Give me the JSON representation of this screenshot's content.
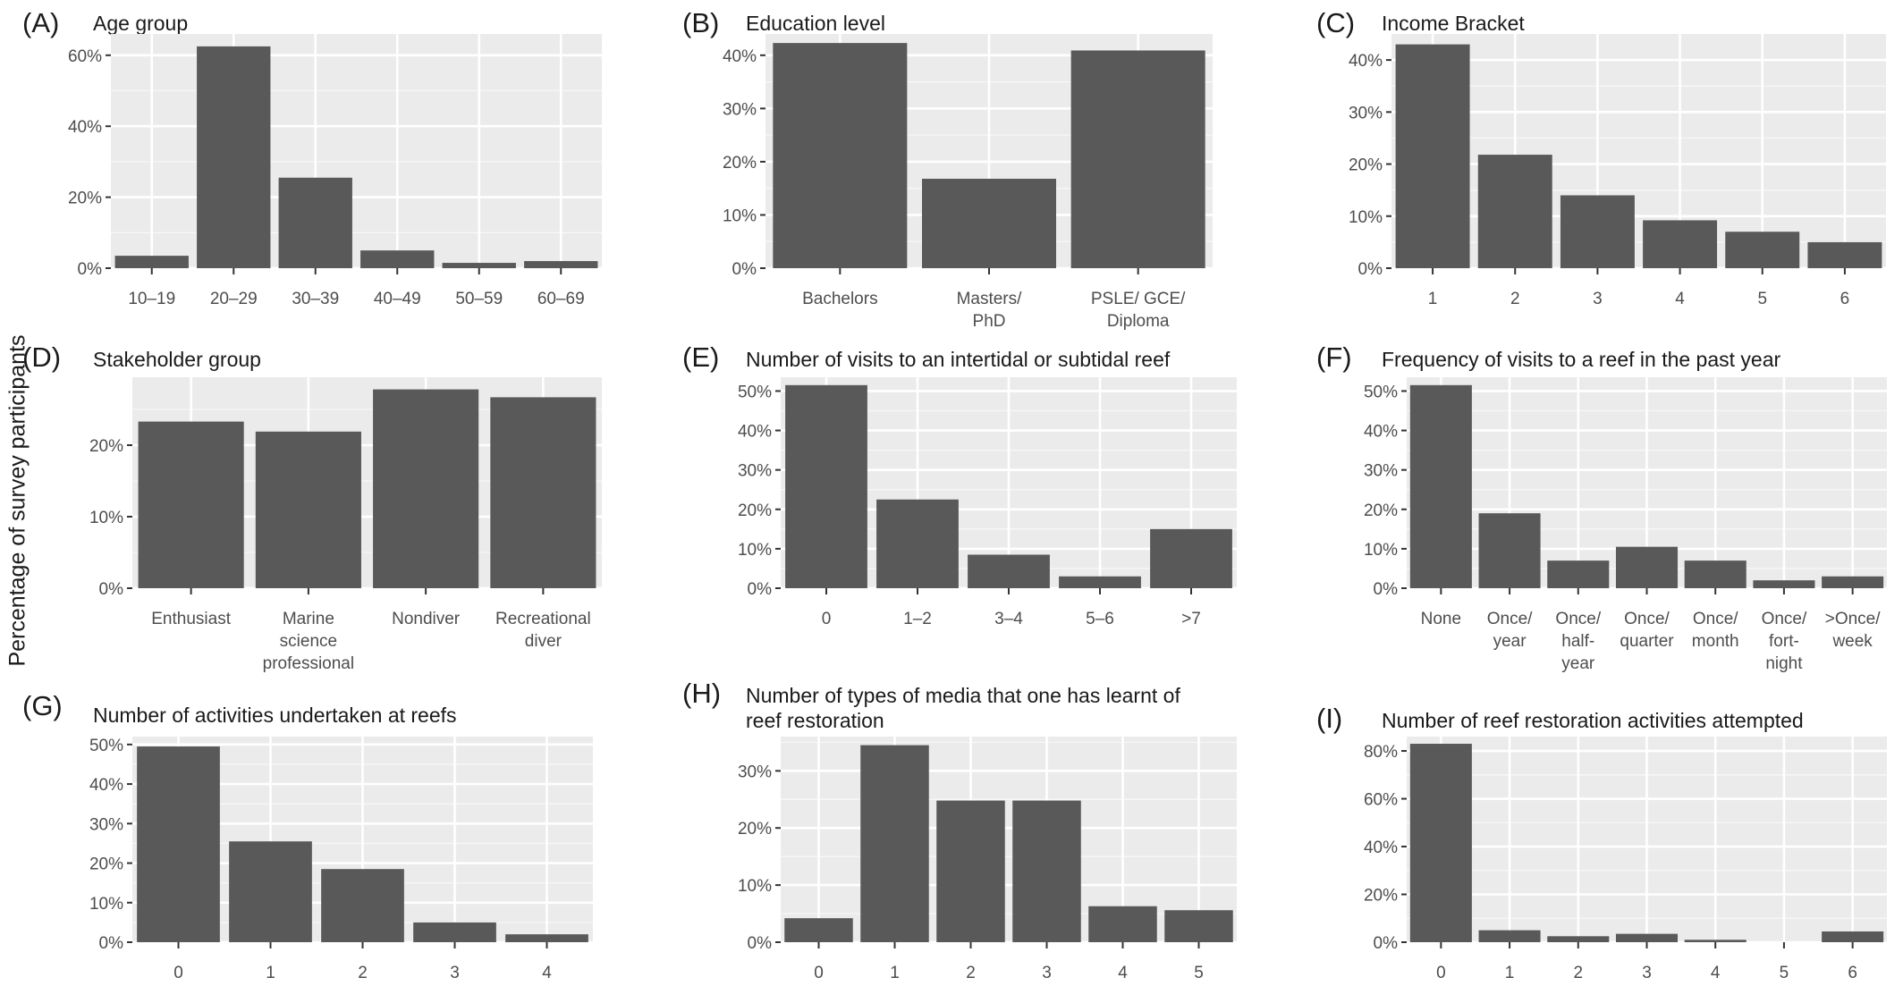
{
  "figure": {
    "y_axis_label": "Percentage of survey participants"
  },
  "chart_data": [
    {
      "id": "A",
      "panel_label": "(A)",
      "title": [
        "Age group"
      ],
      "type": "bar",
      "categories": [
        [
          "10–19"
        ],
        [
          "20–29"
        ],
        [
          "30–39"
        ],
        [
          "40–49"
        ],
        [
          "50–59"
        ],
        [
          "60–69"
        ]
      ],
      "values": [
        3.5,
        62.5,
        25.5,
        5,
        1.5,
        2
      ],
      "ylim": [
        0,
        66
      ],
      "yticks": [
        0,
        20,
        40,
        60
      ],
      "ytick_labels": [
        "0%",
        "20%",
        "40%",
        "60%"
      ],
      "grid": true,
      "bar_color": "#595959",
      "panel_bg": "#ebebeb"
    },
    {
      "id": "B",
      "panel_label": "(B)",
      "title": [
        "Education level"
      ],
      "type": "bar",
      "categories": [
        [
          "Bachelors"
        ],
        [
          "Masters/",
          "PhD"
        ],
        [
          "PSLE/ GCE/",
          "Diploma"
        ]
      ],
      "values": [
        42.3,
        16.8,
        40.9
      ],
      "ylim": [
        0,
        44
      ],
      "yticks": [
        0,
        10,
        20,
        30,
        40
      ],
      "ytick_labels": [
        "0%",
        "10%",
        "20%",
        "30%",
        "40%"
      ],
      "grid": true,
      "bar_color": "#595959",
      "panel_bg": "#ebebeb"
    },
    {
      "id": "C",
      "panel_label": "(C)",
      "title": [
        "Income Bracket"
      ],
      "type": "bar",
      "categories": [
        [
          "1"
        ],
        [
          "2"
        ],
        [
          "3"
        ],
        [
          "4"
        ],
        [
          "5"
        ],
        [
          "6"
        ]
      ],
      "values": [
        43,
        21.8,
        14,
        9.2,
        7,
        5
      ],
      "ylim": [
        0,
        45
      ],
      "yticks": [
        0,
        10,
        20,
        30,
        40
      ],
      "ytick_labels": [
        "0%",
        "10%",
        "20%",
        "30%",
        "40%"
      ],
      "grid": true,
      "bar_color": "#595959",
      "panel_bg": "#ebebeb"
    },
    {
      "id": "D",
      "panel_label": "(D)",
      "title": [
        "Stakeholder group"
      ],
      "type": "bar",
      "categories": [
        [
          "Enthusiast"
        ],
        [
          "Marine",
          "science",
          "professional"
        ],
        [
          "Nondiver"
        ],
        [
          "Recreational",
          "diver"
        ]
      ],
      "values": [
        23.3,
        21.9,
        27.8,
        26.7
      ],
      "ylim": [
        0,
        29.5
      ],
      "yticks": [
        0,
        10,
        20
      ],
      "ytick_labels": [
        "0%",
        "10%",
        "20%"
      ],
      "grid": true,
      "bar_color": "#595959",
      "panel_bg": "#ebebeb"
    },
    {
      "id": "E",
      "panel_label": "(E)",
      "title": [
        "Number of visits to an intertidal or subtidal reef"
      ],
      "type": "bar",
      "categories": [
        [
          "0"
        ],
        [
          "1–2"
        ],
        [
          "3–4"
        ],
        [
          "5–6"
        ],
        [
          ">7"
        ]
      ],
      "values": [
        51.5,
        22.5,
        8.5,
        3,
        15
      ],
      "ylim": [
        0,
        53.5
      ],
      "yticks": [
        0,
        10,
        20,
        30,
        40,
        50
      ],
      "ytick_labels": [
        "0%",
        "10%",
        "20%",
        "30%",
        "40%",
        "50%"
      ],
      "grid": true,
      "bar_color": "#595959",
      "panel_bg": "#ebebeb"
    },
    {
      "id": "F",
      "panel_label": "(F)",
      "title": [
        "Frequency of visits to a reef in the past year"
      ],
      "type": "bar",
      "categories": [
        [
          "None"
        ],
        [
          "Once/",
          "year"
        ],
        [
          "Once/",
          "half-",
          "year"
        ],
        [
          "Once/",
          "quarter"
        ],
        [
          "Once/",
          "month"
        ],
        [
          "Once/",
          "fort-",
          "night"
        ],
        [
          ">Once/",
          "week"
        ]
      ],
      "values": [
        51.5,
        19,
        7,
        10.5,
        7,
        2,
        3
      ],
      "ylim": [
        0,
        53.5
      ],
      "yticks": [
        0,
        10,
        20,
        30,
        40,
        50
      ],
      "ytick_labels": [
        "0%",
        "10%",
        "20%",
        "30%",
        "40%",
        "50%"
      ],
      "grid": true,
      "bar_color": "#595959",
      "panel_bg": "#ebebeb"
    },
    {
      "id": "G",
      "panel_label": "(G)",
      "title": [
        "Number of activities undertaken at reefs"
      ],
      "type": "bar",
      "categories": [
        [
          "0"
        ],
        [
          "1"
        ],
        [
          "2"
        ],
        [
          "3"
        ],
        [
          "4"
        ]
      ],
      "values": [
        49.5,
        25.5,
        18.5,
        5,
        2
      ],
      "ylim": [
        0,
        52
      ],
      "yticks": [
        0,
        10,
        20,
        30,
        40,
        50
      ],
      "ytick_labels": [
        "0%",
        "10%",
        "20%",
        "30%",
        "40%",
        "50%"
      ],
      "grid": true,
      "bar_color": "#595959",
      "panel_bg": "#ebebeb"
    },
    {
      "id": "H",
      "panel_label": "(H)",
      "title": [
        "Number of types of media that one has learnt of",
        "reef restoration"
      ],
      "type": "bar",
      "categories": [
        [
          "0"
        ],
        [
          "1"
        ],
        [
          "2"
        ],
        [
          "3"
        ],
        [
          "4"
        ],
        [
          "5"
        ]
      ],
      "values": [
        4.2,
        34.5,
        24.8,
        24.8,
        6.3,
        5.6
      ],
      "ylim": [
        0,
        36
      ],
      "yticks": [
        0,
        10,
        20,
        30
      ],
      "ytick_labels": [
        "0%",
        "10%",
        "20%",
        "30%"
      ],
      "grid": true,
      "bar_color": "#595959",
      "panel_bg": "#ebebeb"
    },
    {
      "id": "I",
      "panel_label": "(I)",
      "title": [
        "Number of reef restoration activities attempted"
      ],
      "type": "bar",
      "categories": [
        [
          "0"
        ],
        [
          "1"
        ],
        [
          "2"
        ],
        [
          "3"
        ],
        [
          "4"
        ],
        [
          "5"
        ],
        [
          "6"
        ]
      ],
      "values": [
        83,
        5,
        2.5,
        3.5,
        1,
        0,
        4.5
      ],
      "ylim": [
        0,
        86
      ],
      "yticks": [
        0,
        20,
        40,
        60,
        80
      ],
      "ytick_labels": [
        "0%",
        "20%",
        "40%",
        "60%",
        "80%"
      ],
      "grid": true,
      "bar_color": "#595959",
      "panel_bg": "#ebebeb"
    }
  ]
}
